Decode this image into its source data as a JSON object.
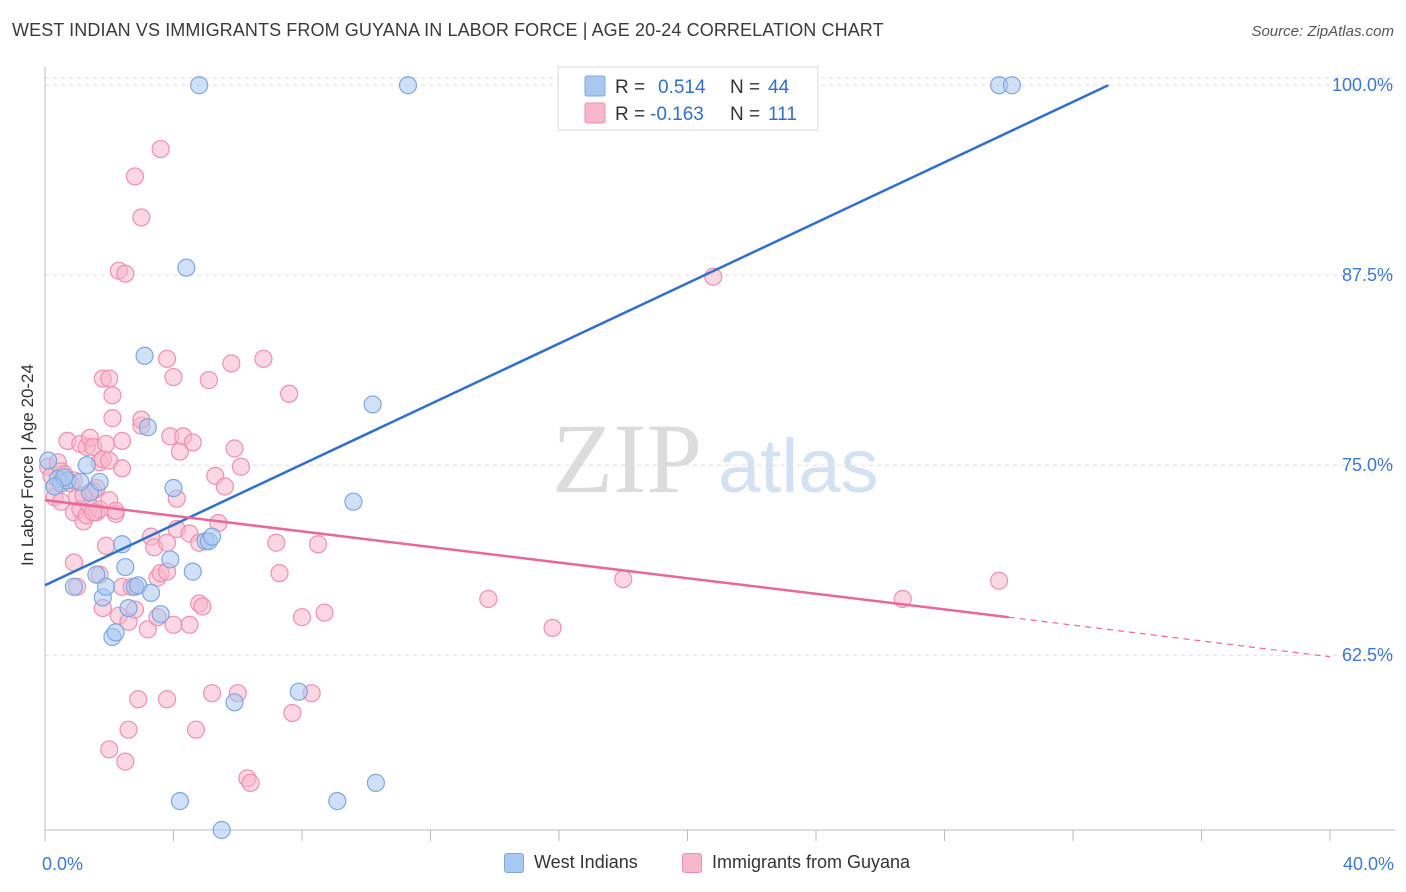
{
  "header": {
    "title": "WEST INDIAN VS IMMIGRANTS FROM GUYANA IN LABOR FORCE | AGE 20-24 CORRELATION CHART",
    "source": "Source: ZipAtlas.com"
  },
  "watermark": {
    "zip": "ZIP",
    "atlas": "atlas"
  },
  "legend_top": [
    {
      "r_label": "R =",
      "r_value": "0.514",
      "n_label": "N =",
      "n_value": "44"
    },
    {
      "r_label": "R =",
      "r_value": "-0.163",
      "n_label": "N =",
      "n_value": "111"
    }
  ],
  "legend_bottom": [
    {
      "label": "West Indians"
    },
    {
      "label": "Immigrants from Guyana"
    }
  ],
  "colors": {
    "blue_fill": "#a9c8f0",
    "blue_stroke": "#7da7e0",
    "blue_line": "#2f6fce",
    "pink_fill": "#f6b6cb",
    "pink_stroke": "#ef8fb0",
    "pink_line": "#e7689a",
    "tick_text": "#3b78d4",
    "grid": "#dddddd"
  },
  "chart_data": {
    "type": "scatter",
    "title": "WEST INDIAN VS IMMIGRANTS FROM GUYANA IN LABOR FORCE | AGE 20-24 CORRELATION CHART",
    "xlabel": "",
    "ylabel": "In Labor Force | Age 20-24",
    "xlim": [
      0,
      40
    ],
    "ylim": [
      51,
      101.2
    ],
    "x_tick_labels": [
      "0.0%",
      "40.0%"
    ],
    "y_ticks": [
      62.5,
      75.0,
      87.5,
      100.0
    ],
    "y_tick_labels": [
      "62.5%",
      "75.0%",
      "87.5%",
      "100.0%"
    ],
    "series": [
      {
        "name": "West Indians",
        "r": 0.514,
        "n": 44,
        "trend": {
          "x": [
            0,
            33.1
          ],
          "y": [
            67.1,
            100.0
          ]
        },
        "points": [
          [
            0.1,
            75.3
          ],
          [
            0.4,
            74.1
          ],
          [
            0.5,
            73.8
          ],
          [
            0.7,
            74.0
          ],
          [
            1.3,
            75.0
          ],
          [
            1.4,
            73.2
          ],
          [
            0.9,
            67.0
          ],
          [
            1.6,
            67.8
          ],
          [
            1.8,
            66.3
          ],
          [
            1.9,
            67.0
          ],
          [
            2.1,
            63.7
          ],
          [
            2.2,
            64.0
          ],
          [
            2.4,
            69.8
          ],
          [
            2.5,
            68.3
          ],
          [
            2.6,
            65.6
          ],
          [
            2.8,
            67.0
          ],
          [
            2.9,
            67.1
          ],
          [
            3.3,
            66.6
          ],
          [
            3.6,
            65.2
          ],
          [
            3.1,
            82.2
          ],
          [
            3.2,
            77.5
          ],
          [
            3.9,
            68.8
          ],
          [
            4.0,
            73.5
          ],
          [
            4.4,
            88.0
          ],
          [
            4.6,
            68.0
          ],
          [
            4.8,
            100.0
          ],
          [
            5.0,
            70.0
          ],
          [
            5.1,
            70.0
          ],
          [
            5.2,
            70.3
          ],
          [
            5.5,
            51.0
          ],
          [
            5.9,
            59.4
          ],
          [
            7.9,
            60.1
          ],
          [
            9.1,
            52.9
          ],
          [
            9.6,
            72.6
          ],
          [
            10.2,
            79.0
          ],
          [
            10.3,
            54.1
          ],
          [
            11.3,
            100.0
          ],
          [
            4.2,
            52.9
          ],
          [
            29.7,
            100.0
          ],
          [
            30.1,
            100.0
          ],
          [
            1.1,
            73.9
          ],
          [
            0.6,
            74.2
          ],
          [
            0.3,
            73.6
          ],
          [
            1.7,
            73.9
          ]
        ]
      },
      {
        "name": "Immigrants from Guyana",
        "r": -0.163,
        "n": 111,
        "trend": {
          "x": [
            0,
            30.0
          ],
          "y": [
            72.7,
            65.0
          ]
        },
        "trend_dashed": {
          "x": [
            30.0,
            40.0
          ],
          "y": [
            65.0,
            62.4
          ]
        },
        "points": [
          [
            0.1,
            74.9
          ],
          [
            0.2,
            74.3
          ],
          [
            0.3,
            73.6
          ],
          [
            0.3,
            72.9
          ],
          [
            0.4,
            75.2
          ],
          [
            0.5,
            74.6
          ],
          [
            0.5,
            72.6
          ],
          [
            0.6,
            74.4
          ],
          [
            0.7,
            76.6
          ],
          [
            0.8,
            73.8
          ],
          [
            0.9,
            71.9
          ],
          [
            0.9,
            68.6
          ],
          [
            1.0,
            72.9
          ],
          [
            1.0,
            67.0
          ],
          [
            1.1,
            72.1
          ],
          [
            1.1,
            76.4
          ],
          [
            1.2,
            71.3
          ],
          [
            1.3,
            71.7
          ],
          [
            1.3,
            76.2
          ],
          [
            1.4,
            72.3
          ],
          [
            1.4,
            76.8
          ],
          [
            1.5,
            73.3
          ],
          [
            1.5,
            76.2
          ],
          [
            1.6,
            73.5
          ],
          [
            1.6,
            71.9
          ],
          [
            1.7,
            75.2
          ],
          [
            1.7,
            67.8
          ],
          [
            1.7,
            72.1
          ],
          [
            1.8,
            75.4
          ],
          [
            1.8,
            65.6
          ],
          [
            1.8,
            80.7
          ],
          [
            1.9,
            69.7
          ],
          [
            1.9,
            76.4
          ],
          [
            2.0,
            80.7
          ],
          [
            2.0,
            75.3
          ],
          [
            2.0,
            72.7
          ],
          [
            2.0,
            56.3
          ],
          [
            2.1,
            78.1
          ],
          [
            2.1,
            79.6
          ],
          [
            2.2,
            71.8
          ],
          [
            2.2,
            72.0
          ],
          [
            2.3,
            65.1
          ],
          [
            2.3,
            87.8
          ],
          [
            2.4,
            67.0
          ],
          [
            2.4,
            76.6
          ],
          [
            2.4,
            74.8
          ],
          [
            2.5,
            87.6
          ],
          [
            2.5,
            55.5
          ],
          [
            2.6,
            64.7
          ],
          [
            2.6,
            57.6
          ],
          [
            2.7,
            67.0
          ],
          [
            2.8,
            94.0
          ],
          [
            2.8,
            65.5
          ],
          [
            2.9,
            59.6
          ],
          [
            3.0,
            91.3
          ],
          [
            3.0,
            77.6
          ],
          [
            3.0,
            78.0
          ],
          [
            3.2,
            64.2
          ],
          [
            3.3,
            70.3
          ],
          [
            3.4,
            69.6
          ],
          [
            3.5,
            67.6
          ],
          [
            3.5,
            65.0
          ],
          [
            3.6,
            67.9
          ],
          [
            3.6,
            95.8
          ],
          [
            3.8,
            82.0
          ],
          [
            3.8,
            59.6
          ],
          [
            3.8,
            69.9
          ],
          [
            3.8,
            68.0
          ],
          [
            3.9,
            76.9
          ],
          [
            4.0,
            80.8
          ],
          [
            4.0,
            64.5
          ],
          [
            4.1,
            70.8
          ],
          [
            4.1,
            72.8
          ],
          [
            4.2,
            75.9
          ],
          [
            4.3,
            76.9
          ],
          [
            4.5,
            64.5
          ],
          [
            4.5,
            70.5
          ],
          [
            4.6,
            76.5
          ],
          [
            4.7,
            57.6
          ],
          [
            4.8,
            65.9
          ],
          [
            4.8,
            69.9
          ],
          [
            4.9,
            65.7
          ],
          [
            5.1,
            80.6
          ],
          [
            5.2,
            60.0
          ],
          [
            5.3,
            74.3
          ],
          [
            5.4,
            71.2
          ],
          [
            5.6,
            73.6
          ],
          [
            5.8,
            81.7
          ],
          [
            5.9,
            76.1
          ],
          [
            6.0,
            60.0
          ],
          [
            6.1,
            74.9
          ],
          [
            6.3,
            54.4
          ],
          [
            6.4,
            54.1
          ],
          [
            6.8,
            82.0
          ],
          [
            7.2,
            69.9
          ],
          [
            7.3,
            67.9
          ],
          [
            7.6,
            79.7
          ],
          [
            7.7,
            58.7
          ],
          [
            8.0,
            65.0
          ],
          [
            8.3,
            60.0
          ],
          [
            8.5,
            69.8
          ],
          [
            8.7,
            65.3
          ],
          [
            13.8,
            66.2
          ],
          [
            15.8,
            64.3
          ],
          [
            18.0,
            67.5
          ],
          [
            20.8,
            87.4
          ],
          [
            26.7,
            66.2
          ],
          [
            29.7,
            67.4
          ],
          [
            1.2,
            73.0
          ],
          [
            0.9,
            74.0
          ],
          [
            1.5,
            71.9
          ]
        ]
      }
    ]
  }
}
